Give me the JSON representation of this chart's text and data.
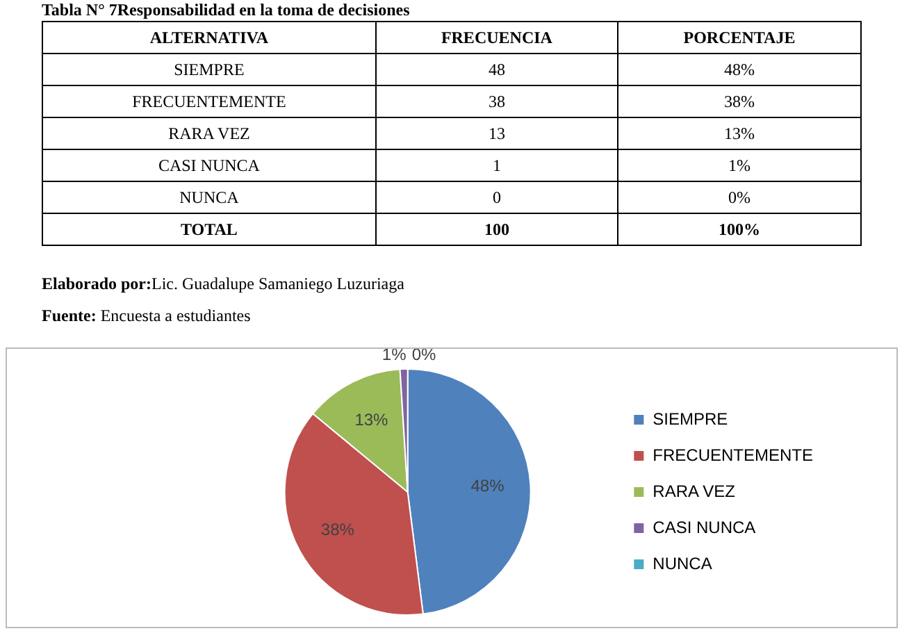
{
  "chart_data": {
    "type": "pie",
    "title": "Tabla N° 7Responsabilidad en la toma de decisiones",
    "categories": [
      "SIEMPRE",
      "FRECUENTEMENTE",
      "RARA VEZ",
      "CASI NUNCA",
      "NUNCA"
    ],
    "values": [
      48,
      38,
      13,
      1,
      0
    ],
    "colors": [
      "#4f81bd",
      "#c0504d",
      "#9bbb59",
      "#8064a2",
      "#4bacc6"
    ],
    "value_labels": [
      "48%",
      "38%",
      "13%",
      "1%",
      "0%"
    ],
    "legend": "right",
    "annotations": [
      "ALTERNATIVA",
      "FRECUENCIA",
      "PORCENTAJE",
      "TOTAL",
      "100",
      "100%",
      "Elaborado por:Lic. Guadalupe Samaniego Luzuriaga",
      "Fuente: Encuesta a estudiantes",
      "48",
      "38",
      "13",
      "1",
      "0"
    ]
  }
}
